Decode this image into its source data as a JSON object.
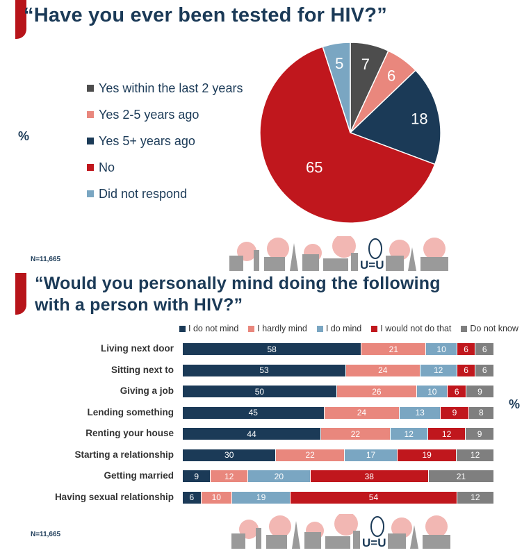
{
  "section1": {
    "title": "“Have you ever been tested for HIV?”",
    "unit": "%",
    "n_note": "N=11,665"
  },
  "section2": {
    "title_line1": "“Would you personally mind doing the following",
    "title_line2": "with a person with HIV?”",
    "unit": "%",
    "n_note": "N=11,665"
  },
  "logo_text": "U=U",
  "chart_data": [
    {
      "type": "pie",
      "title": "“Have you ever been tested for HIV?”",
      "unit": "%",
      "legend_position": "left",
      "slices": [
        {
          "label": "Yes within the last 2 years",
          "value": 7,
          "color": "#4d4d4d"
        },
        {
          "label": "Yes 2-5 years ago",
          "value": 6,
          "color": "#e9877d"
        },
        {
          "label": "Yes 5+ years ago",
          "value": 18,
          "color": "#1b3a57"
        },
        {
          "label": "No",
          "value": 65,
          "color": "#c0171d"
        },
        {
          "label": "Did not respond",
          "value": 5,
          "color": "#7aa6c2"
        }
      ]
    },
    {
      "type": "bar",
      "orientation": "horizontal",
      "stacked": true,
      "title": "“Would you personally mind doing the following with a person with HIV?”",
      "unit": "%",
      "legend_position": "top",
      "categories": [
        "Living next door",
        "Sitting next to",
        "Giving a job",
        "Lending something",
        "Renting your house",
        "Starting a relationship",
        "Getting married",
        "Having sexual relationship"
      ],
      "series": [
        {
          "name": "I do not mind",
          "color": "#1b3a57",
          "values": [
            58,
            53,
            50,
            45,
            44,
            30,
            9,
            6
          ]
        },
        {
          "name": "I hardly mind",
          "color": "#e9877d",
          "values": [
            21,
            24,
            26,
            24,
            22,
            22,
            12,
            10
          ]
        },
        {
          "name": "I do mind",
          "color": "#7aa6c2",
          "values": [
            10,
            12,
            10,
            13,
            12,
            17,
            20,
            19
          ]
        },
        {
          "name": "I would not do that",
          "color": "#c0171d",
          "values": [
            6,
            6,
            6,
            9,
            12,
            19,
            38,
            54
          ]
        },
        {
          "name": "Do not know",
          "color": "#7f7f7f",
          "values": [
            6,
            6,
            9,
            8,
            9,
            12,
            21,
            12
          ]
        }
      ]
    }
  ]
}
